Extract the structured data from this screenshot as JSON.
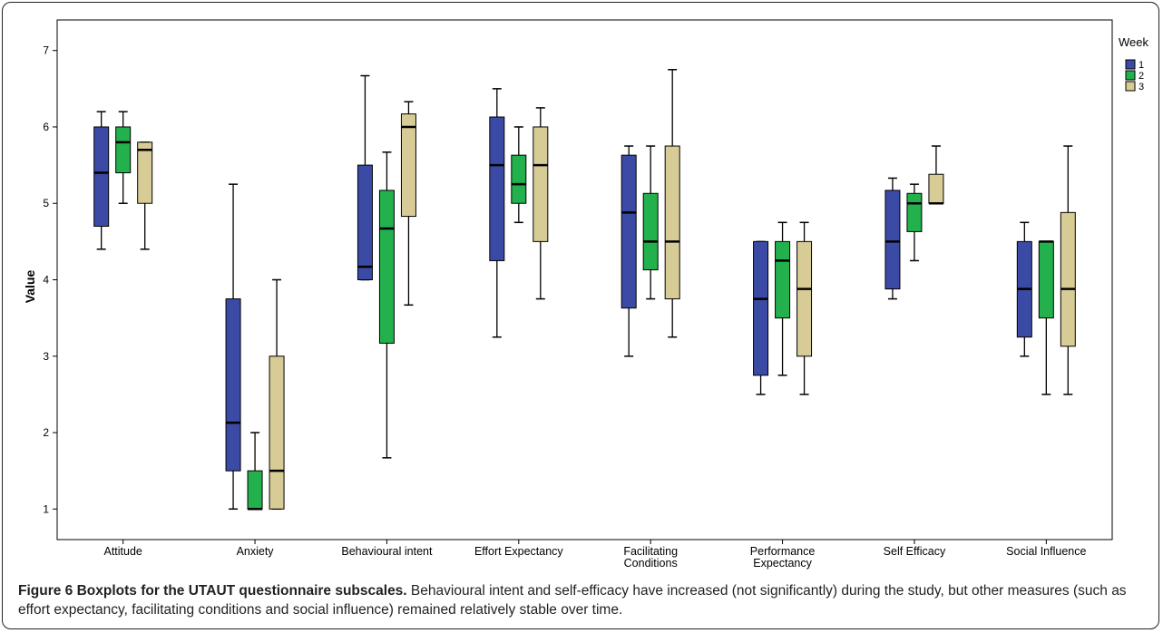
{
  "chart_data": {
    "type": "boxplot",
    "ylabel": "Value",
    "xlabel": "",
    "ylim": [
      0.6,
      7.4
    ],
    "yticks": [
      1,
      2,
      3,
      4,
      5,
      6,
      7
    ],
    "grid": false,
    "legend": {
      "title": "Week",
      "placement": "top-right"
    },
    "categories": [
      "Attitude",
      "Anxiety",
      "Behavioural intent",
      "Effort Expectancy",
      "Facilitating\nConditions",
      "Performance\nExpectancy",
      "Self Efficacy",
      "Social Influence"
    ],
    "series": [
      {
        "name": "1",
        "color": "#3b4ba5",
        "boxes": [
          {
            "min": 4.4,
            "q1": 4.7,
            "median": 5.4,
            "q3": 6.0,
            "max": 6.2
          },
          {
            "min": 1.0,
            "q1": 1.5,
            "median": 2.13,
            "q3": 3.75,
            "max": 5.25
          },
          {
            "min": 4.0,
            "q1": 4.0,
            "median": 4.17,
            "q3": 5.5,
            "max": 6.67
          },
          {
            "min": 3.25,
            "q1": 4.25,
            "median": 5.5,
            "q3": 6.13,
            "max": 6.5
          },
          {
            "min": 3.0,
            "q1": 3.63,
            "median": 4.88,
            "q3": 5.63,
            "max": 5.75
          },
          {
            "min": 2.5,
            "q1": 2.75,
            "median": 3.75,
            "q3": 4.5,
            "max": 4.5
          },
          {
            "min": 3.75,
            "q1": 3.88,
            "median": 4.5,
            "q3": 5.17,
            "max": 5.33
          },
          {
            "min": 3.0,
            "q1": 3.25,
            "median": 3.88,
            "q3": 4.5,
            "max": 4.75
          }
        ]
      },
      {
        "name": "2",
        "color": "#22b14c",
        "boxes": [
          {
            "min": 5.0,
            "q1": 5.4,
            "median": 5.8,
            "q3": 6.0,
            "max": 6.2
          },
          {
            "min": 1.0,
            "q1": 1.0,
            "median": 1.0,
            "q3": 1.5,
            "max": 2.0
          },
          {
            "min": 1.67,
            "q1": 3.17,
            "median": 4.67,
            "q3": 5.17,
            "max": 5.67
          },
          {
            "min": 4.75,
            "q1": 5.0,
            "median": 5.25,
            "q3": 5.63,
            "max": 6.0
          },
          {
            "min": 3.75,
            "q1": 4.13,
            "median": 4.5,
            "q3": 5.13,
            "max": 5.75
          },
          {
            "min": 2.75,
            "q1": 3.5,
            "median": 4.25,
            "q3": 4.5,
            "max": 4.75
          },
          {
            "min": 4.25,
            "q1": 4.63,
            "median": 5.0,
            "q3": 5.13,
            "max": 5.25
          },
          {
            "min": 2.5,
            "q1": 3.5,
            "median": 4.5,
            "q3": 4.5,
            "max": 4.5
          }
        ]
      },
      {
        "name": "3",
        "color": "#d8cc96",
        "boxes": [
          {
            "min": 4.4,
            "q1": 5.0,
            "median": 5.7,
            "q3": 5.8,
            "max": 5.8
          },
          {
            "min": 1.0,
            "q1": 1.0,
            "median": 1.5,
            "q3": 3.0,
            "max": 4.0
          },
          {
            "min": 3.67,
            "q1": 4.83,
            "median": 6.0,
            "q3": 6.17,
            "max": 6.33
          },
          {
            "min": 3.75,
            "q1": 4.5,
            "median": 5.5,
            "q3": 6.0,
            "max": 6.25
          },
          {
            "min": 3.25,
            "q1": 3.75,
            "median": 4.5,
            "q3": 5.75,
            "max": 6.75
          },
          {
            "min": 2.5,
            "q1": 3.0,
            "median": 3.88,
            "q3": 4.5,
            "max": 4.75
          },
          {
            "min": 5.0,
            "q1": 5.0,
            "median": 5.0,
            "q3": 5.38,
            "max": 5.75
          },
          {
            "min": 2.5,
            "q1": 3.13,
            "median": 3.88,
            "q3": 4.88,
            "max": 5.75
          }
        ]
      }
    ]
  },
  "caption": {
    "label": "Figure 6 Boxplots for the UTAUT questionnaire subscales.",
    "text": " Behavioural intent and self-efficacy have increased (not significantly) during the study, but other measures (such as effort expectancy, facilitating conditions and social influence) remained relatively stable over time."
  }
}
